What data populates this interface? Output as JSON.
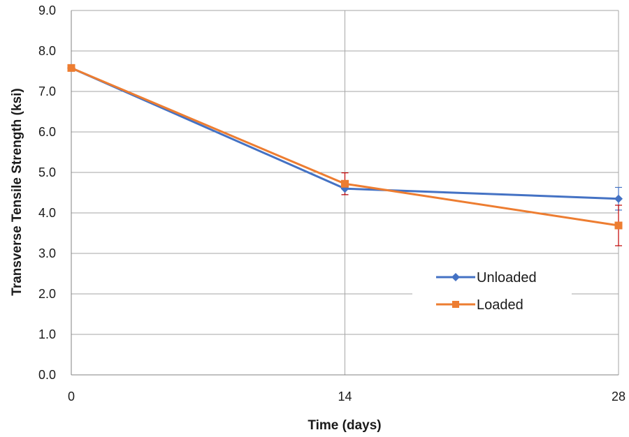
{
  "chart_data": {
    "type": "line",
    "xlabel": "Time (days)",
    "ylabel": "Transverse Tensile Strength (ksi)",
    "x": [
      0,
      14,
      28
    ],
    "x_ticks": [
      "0",
      "14",
      "28"
    ],
    "y_ticks": [
      "0.0",
      "1.0",
      "2.0",
      "3.0",
      "4.0",
      "5.0",
      "6.0",
      "7.0",
      "8.0",
      "9.0"
    ],
    "xlim": [
      0,
      28
    ],
    "ylim": [
      0,
      9
    ],
    "grid": "on",
    "legend_position": "bottom-right",
    "series": [
      {
        "name": "Unloaded",
        "color": "#4472C4",
        "marker": "diamond",
        "values": [
          7.58,
          4.6,
          4.35
        ],
        "error": [
          0,
          0.15,
          0.28
        ]
      },
      {
        "name": "Loaded",
        "color": "#ED7D31",
        "marker": "square",
        "values": [
          7.58,
          4.72,
          3.69
        ],
        "error": [
          0,
          0.27,
          0.5
        ],
        "error_color": "#C00000"
      }
    ]
  }
}
